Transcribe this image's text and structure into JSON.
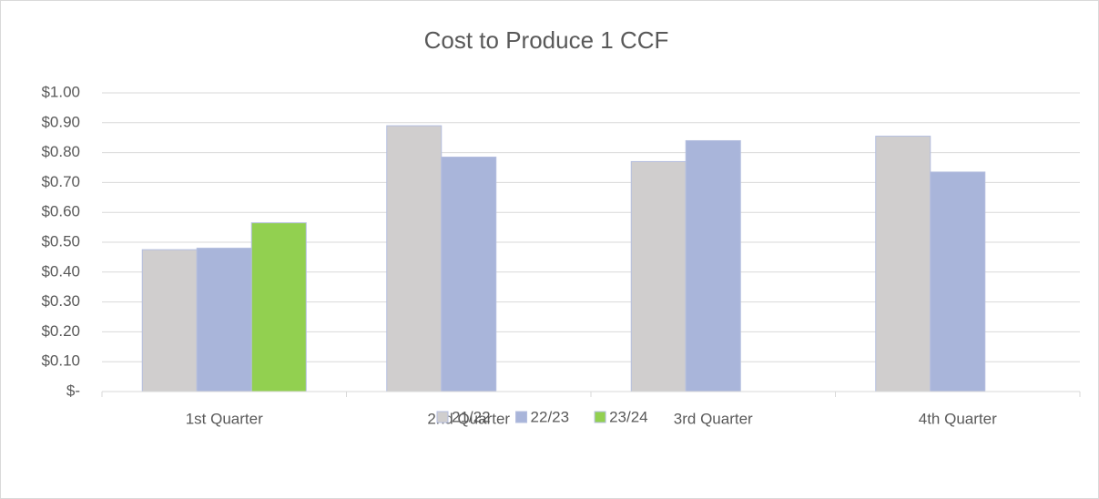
{
  "chart_data": {
    "type": "bar",
    "title": "Cost to Produce 1 CCF",
    "categories": [
      "1st Quarter",
      "2nd Quarter",
      "3rd Quarter",
      "4th Quarter"
    ],
    "series": [
      {
        "name": "21/22",
        "color": "#d0cece",
        "values": [
          0.475,
          0.89,
          0.77,
          0.855
        ]
      },
      {
        "name": "22/23",
        "color": "#a9b5da",
        "values": [
          0.48,
          0.785,
          0.84,
          0.735
        ]
      },
      {
        "name": "23/24",
        "color": "#92d050",
        "values": [
          0.565,
          null,
          null,
          null
        ]
      }
    ],
    "ylim": [
      0,
      1
    ],
    "yticks": [
      {
        "value": 0,
        "label": "$-"
      },
      {
        "value": 0.1,
        "label": "$0.10"
      },
      {
        "value": 0.2,
        "label": "$0.20"
      },
      {
        "value": 0.3,
        "label": "$0.30"
      },
      {
        "value": 0.4,
        "label": "$0.40"
      },
      {
        "value": 0.5,
        "label": "$0.50"
      },
      {
        "value": 0.6,
        "label": "$0.60"
      },
      {
        "value": 0.7,
        "label": "$0.70"
      },
      {
        "value": 0.8,
        "label": "$0.80"
      },
      {
        "value": 0.9,
        "label": "$0.90"
      },
      {
        "value": 1,
        "label": "$1.00"
      }
    ],
    "grid": true,
    "legend": "bottom"
  }
}
